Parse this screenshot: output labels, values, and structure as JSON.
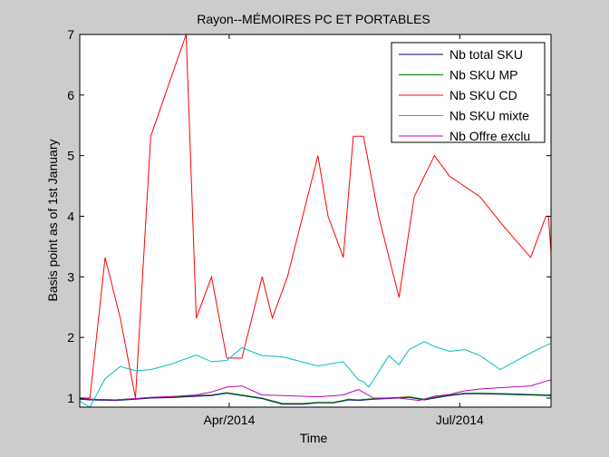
{
  "chart_data": {
    "type": "line",
    "title": "Rayon--MÉMOIRES PC ET PORTABLES",
    "xlabel": "Time",
    "ylabel": "Basis point as of 1st January",
    "xlim": [
      0,
      186
    ],
    "ylim": [
      0.85,
      7
    ],
    "yticks": [
      1,
      2,
      3,
      4,
      5,
      6,
      7
    ],
    "xticks": [
      {
        "label": "Apr/2014",
        "value": 59
      },
      {
        "label": "Jul/2014",
        "value": 150
      }
    ],
    "legend_position": "top-right",
    "grid": false,
    "series": [
      {
        "name": "Nb total SKU",
        "color": "#00007f",
        "x": [
          0,
          4,
          14,
          18,
          22,
          28,
          38,
          42,
          46,
          52,
          58,
          64,
          72,
          80,
          88,
          94,
          100,
          104,
          106,
          110,
          116,
          126,
          130,
          136,
          140,
          146,
          152,
          158,
          170,
          178,
          186
        ],
        "y": [
          0.98,
          0.97,
          0.96,
          0.97,
          0.98,
          1.0,
          1.01,
          1.02,
          1.03,
          1.04,
          1.08,
          1.04,
          0.99,
          0.9,
          0.9,
          0.92,
          0.92,
          0.95,
          0.97,
          0.96,
          0.98,
          1.0,
          1.01,
          0.97,
          1.0,
          1.04,
          1.07,
          1.07,
          1.06,
          1.05,
          1.04
        ]
      },
      {
        "name": "Nb SKU MP",
        "color": "#007f00",
        "x": [
          0,
          4,
          14,
          18,
          22,
          28,
          38,
          42,
          46,
          52,
          58,
          64,
          72,
          80,
          88,
          94,
          100,
          104,
          106,
          110,
          116,
          126,
          130,
          136,
          140,
          146,
          152,
          158,
          170,
          178,
          186
        ],
        "y": [
          0.99,
          0.98,
          0.97,
          0.98,
          0.99,
          1.01,
          1.02,
          1.03,
          1.04,
          1.05,
          1.09,
          1.05,
          1.0,
          0.91,
          0.91,
          0.93,
          0.93,
          0.96,
          0.98,
          0.97,
          0.99,
          1.01,
          1.02,
          0.98,
          1.01,
          1.05,
          1.08,
          1.08,
          1.07,
          1.06,
          1.05
        ]
      },
      {
        "name": "Nb SKU CD",
        "color": "#ff0000",
        "x": [
          0,
          4,
          10,
          16,
          22,
          28,
          42,
          46,
          52,
          58,
          64,
          72,
          76,
          82,
          94,
          98,
          104,
          108,
          112,
          118,
          126,
          132,
          140,
          146,
          158,
          168,
          178,
          184,
          185,
          186
        ],
        "y": [
          1.0,
          1.0,
          3.32,
          2.32,
          1.0,
          5.32,
          7.0,
          2.32,
          3.0,
          1.66,
          1.66,
          3.0,
          2.32,
          3.0,
          5.0,
          4.0,
          3.32,
          5.32,
          5.32,
          4.0,
          2.66,
          4.32,
          5.0,
          4.66,
          4.32,
          3.8,
          3.32,
          4.0,
          4.0,
          3.4
        ]
      },
      {
        "name": "Nb SKU mixte",
        "color": "#00bfbf",
        "x": [
          0,
          4,
          10,
          16,
          22,
          28,
          36,
          46,
          52,
          58,
          64,
          72,
          80,
          94,
          104,
          110,
          112,
          114,
          116,
          122,
          126,
          130,
          136,
          140,
          146,
          152,
          158,
          166,
          176,
          184,
          186
        ],
        "y": [
          0.95,
          0.85,
          1.32,
          1.52,
          1.45,
          1.47,
          1.56,
          1.71,
          1.6,
          1.62,
          1.83,
          1.7,
          1.68,
          1.53,
          1.6,
          1.3,
          1.27,
          1.18,
          1.3,
          1.7,
          1.55,
          1.8,
          1.93,
          1.85,
          1.77,
          1.8,
          1.7,
          1.47,
          1.7,
          1.87,
          1.9
        ]
      },
      {
        "name": "Nb Offre exclu",
        "color": "#bf00bf",
        "x": [
          0,
          4,
          14,
          18,
          22,
          28,
          38,
          42,
          46,
          52,
          58,
          64,
          72,
          80,
          94,
          104,
          110,
          116,
          126,
          134,
          140,
          146,
          152,
          158,
          170,
          178,
          184,
          186
        ],
        "y": [
          1.0,
          0.98,
          0.97,
          0.98,
          0.99,
          1.01,
          1.03,
          1.04,
          1.05,
          1.1,
          1.18,
          1.2,
          1.05,
          1.04,
          1.02,
          1.05,
          1.14,
          1.0,
          1.0,
          0.96,
          1.03,
          1.06,
          1.12,
          1.15,
          1.18,
          1.2,
          1.28,
          1.3
        ]
      }
    ]
  }
}
